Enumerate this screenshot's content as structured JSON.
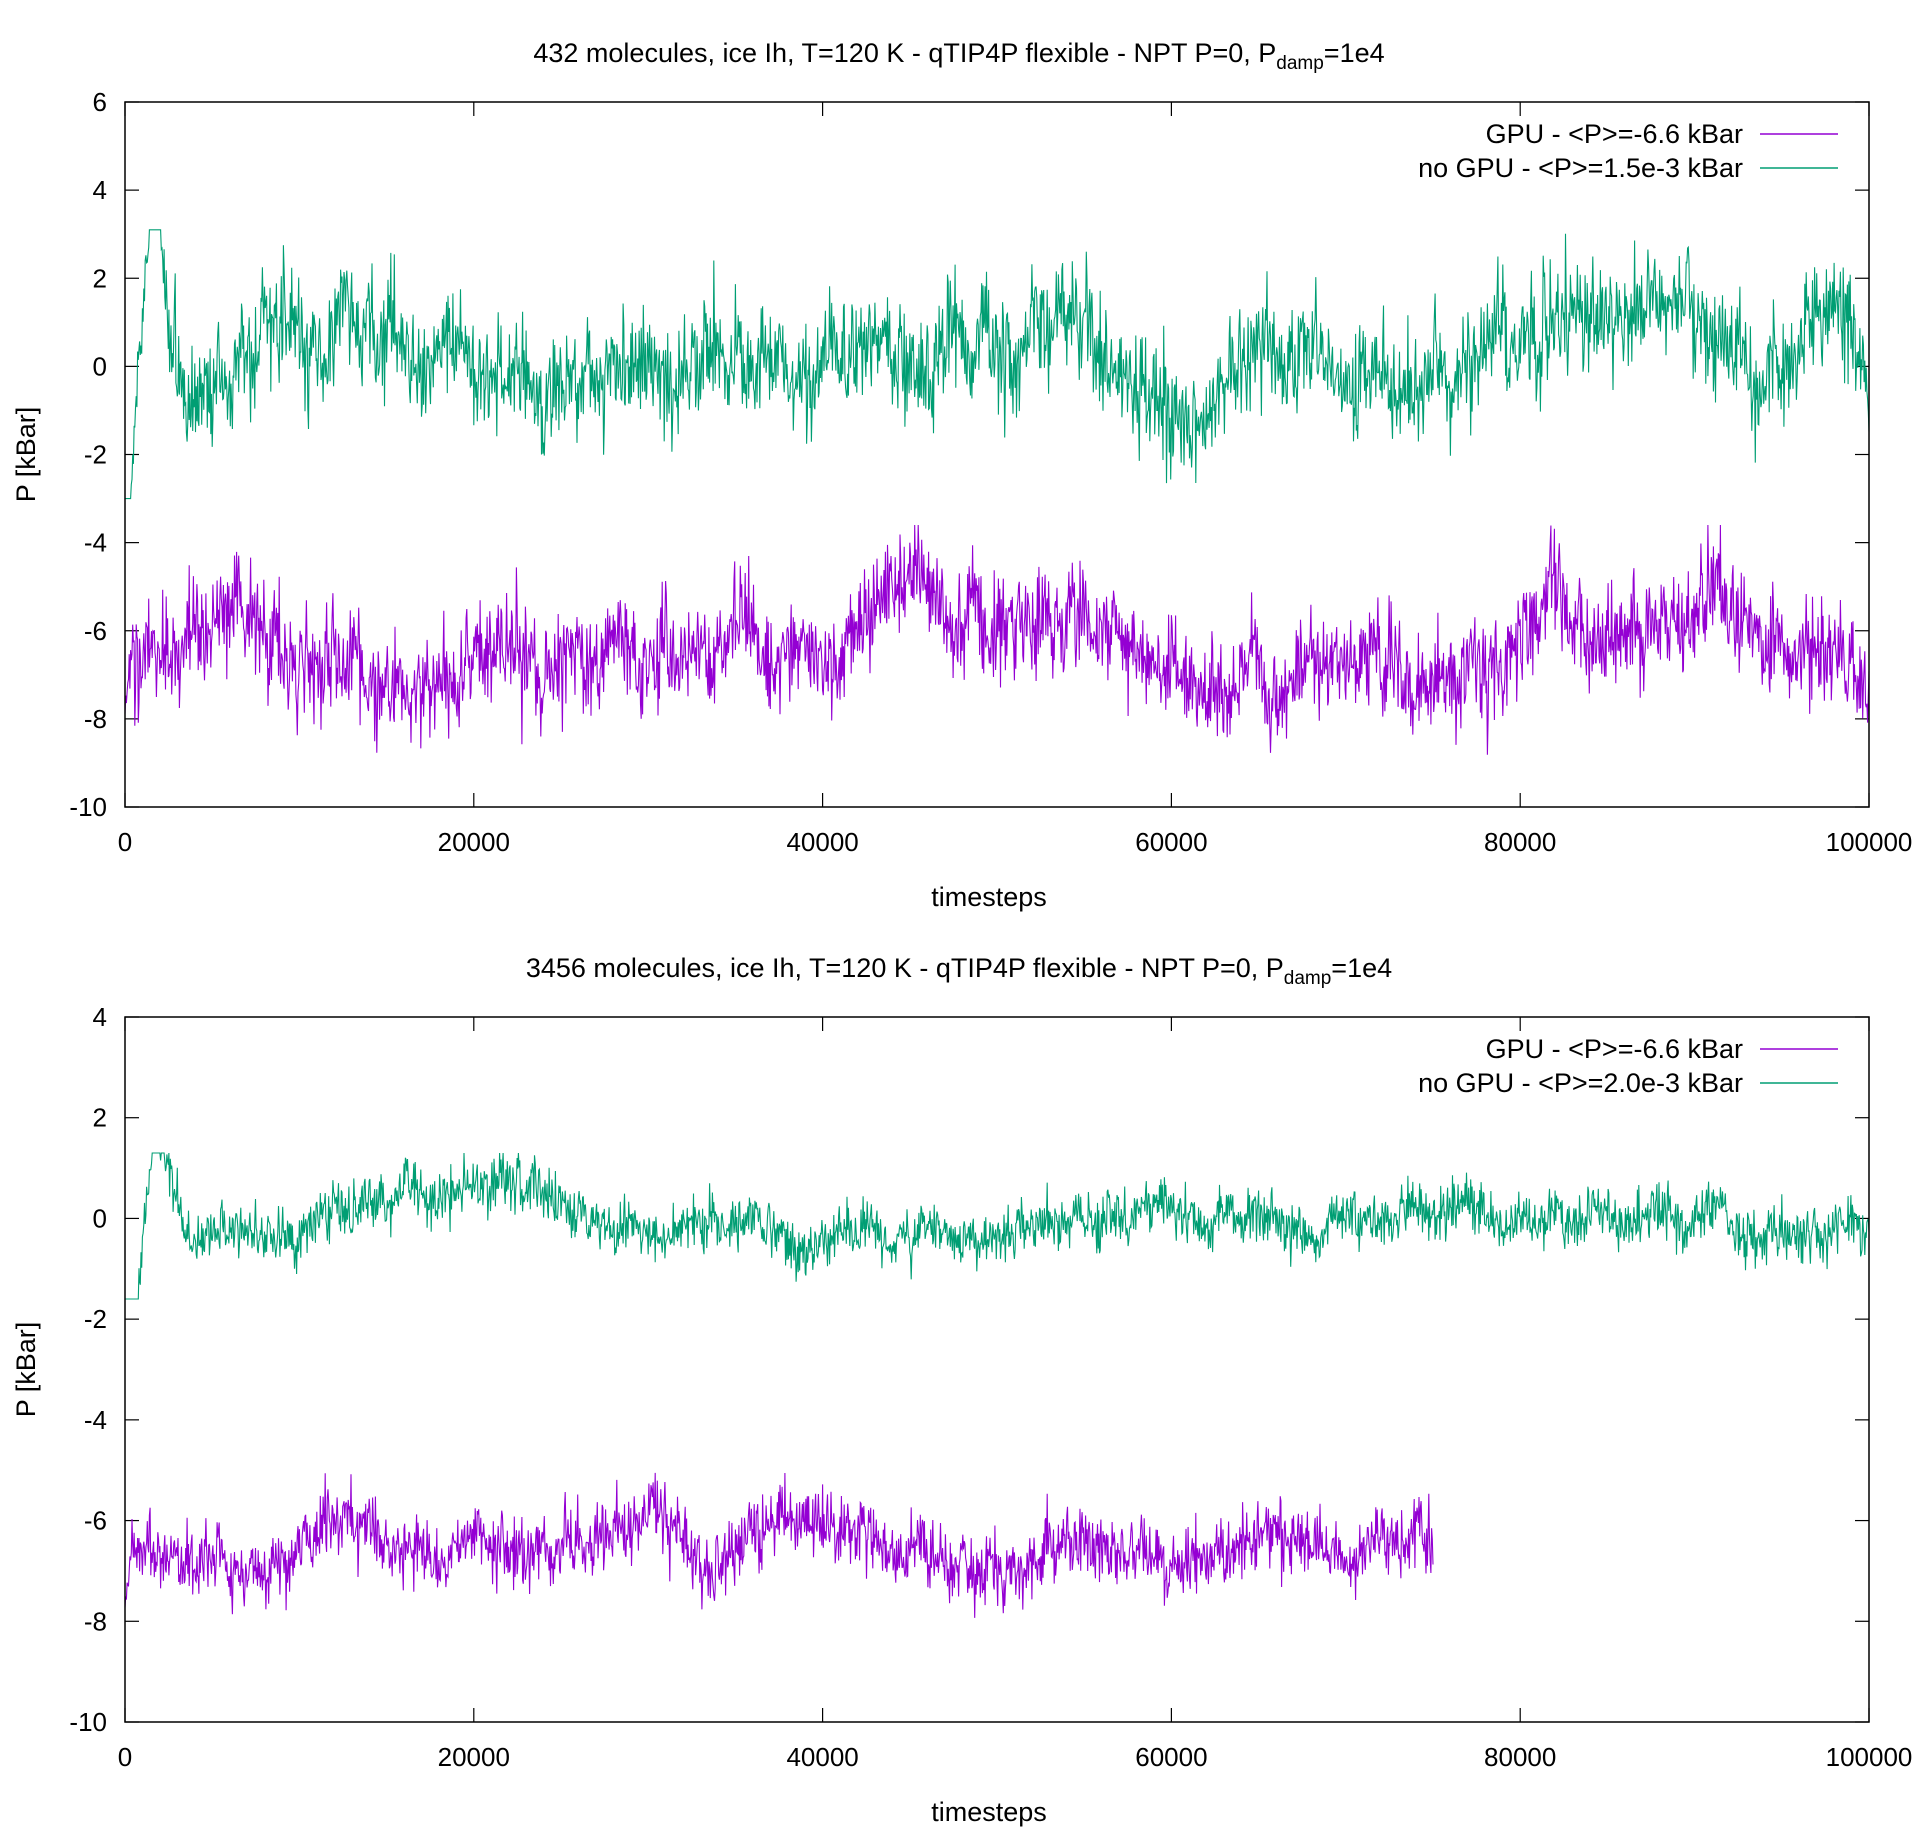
{
  "chart_data": [
    {
      "type": "line",
      "title_prefix": "432 molecules, ice Ih, T=120 K - qTIP4P flexible - NPT P=0, P",
      "title_subscript": "damp",
      "title_suffix": "=1e4",
      "xlabel": "timesteps",
      "ylabel": "P [kBar]",
      "xlim": [
        0,
        100000
      ],
      "ylim": [
        -10,
        6
      ],
      "xticks": [
        "0",
        "20000",
        "40000",
        "60000",
        "80000",
        "100000"
      ],
      "yticks": [
        "6",
        "4",
        "2",
        "0",
        "-2",
        "-4",
        "-6",
        "-8",
        "-10"
      ],
      "grid": false,
      "legend_position": "top-right",
      "series": [
        {
          "name": "GPU - <P>=-6.6 kBar",
          "color": "#9400d3",
          "x_range": [
            0,
            100000
          ],
          "mean": -6.6,
          "approx_min": -9.5,
          "approx_max": -3.6
        },
        {
          "name": "no GPU - <P>=1.5e-3 kBar",
          "color": "#009e73",
          "x_range": [
            0,
            100000
          ],
          "mean": 0.0015,
          "initial_peak": 4.3,
          "initial_peak_x": 1700,
          "approx_min": -3.0,
          "approx_max": 3.1
        }
      ]
    },
    {
      "type": "line",
      "title_prefix": "3456 molecules, ice Ih, T=120 K - qTIP4P flexible - NPT P=0, P",
      "title_subscript": "damp",
      "title_suffix": "=1e4",
      "xlabel": "timesteps",
      "ylabel": "P [kBar]",
      "xlim": [
        0,
        100000
      ],
      "ylim": [
        -10,
        4
      ],
      "xticks": [
        "0",
        "20000",
        "40000",
        "60000",
        "80000",
        "100000"
      ],
      "yticks": [
        "4",
        "2",
        "0",
        "-2",
        "-4",
        "-6",
        "-8",
        "-10"
      ],
      "grid": false,
      "legend_position": "top-right",
      "series": [
        {
          "name": "GPU - <P>=-6.6 kBar",
          "color": "#9400d3",
          "x_range": [
            0,
            75000
          ],
          "mean": -6.6,
          "approx_min": -8.4,
          "approx_max": -4.9
        },
        {
          "name": "no GPU - <P>=2.0e-3 kBar",
          "color": "#009e73",
          "x_range": [
            0,
            100000
          ],
          "mean": 0.002,
          "initial_peak": 2.2,
          "initial_peak_x": 1800,
          "approx_min": -1.6,
          "approx_max": 1.3
        }
      ]
    }
  ]
}
